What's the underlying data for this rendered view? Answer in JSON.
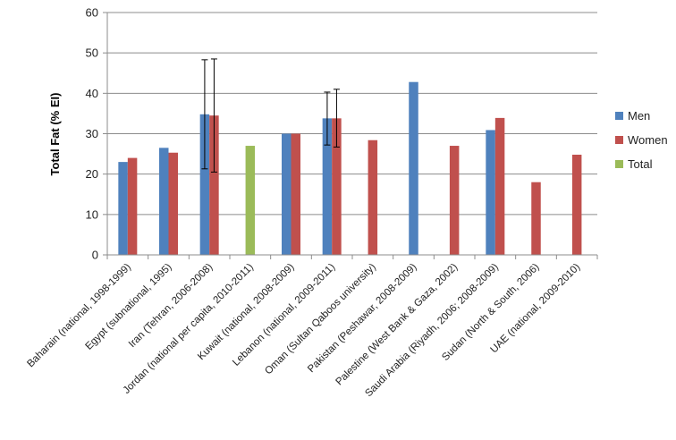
{
  "chart_data": {
    "type": "bar",
    "ylabel": "Total Fat (% EI)",
    "ylim": [
      0,
      60
    ],
    "yticks": [
      0,
      10,
      20,
      30,
      40,
      50,
      60
    ],
    "grid": true,
    "legend_position": "right",
    "categories": [
      "Baharain (national, 1998-1999)",
      "Egypt (subnational, 1995)",
      "Iran (Tehran, 2006-2008)",
      "Jordan (national per capita, 2010-2011)",
      "Kuwait (national, 2008-2009)",
      "Lebanon (national, 2009-2011)",
      "Oman (Sultan Qaboos university)",
      "Pakistan (Peshawar, 2008-2009)",
      "Palestine (West Bank & Gaza, 2002)",
      "Saudi Arabia (Riyadh, 2006; 2008-2009)",
      "Sudan (North & South, 2006)",
      "UAE (national, 2009-2010)"
    ],
    "series": [
      {
        "name": "Men",
        "color": "#4f81bd",
        "values": [
          23,
          26.5,
          34.8,
          null,
          30,
          33.8,
          null,
          42.8,
          null,
          30.9,
          null,
          null
        ],
        "error_low": [
          null,
          null,
          21.3,
          null,
          null,
          27.2,
          null,
          null,
          null,
          null,
          null,
          null
        ],
        "error_high": [
          null,
          null,
          48.3,
          null,
          null,
          40.3,
          null,
          null,
          null,
          null,
          null,
          null
        ]
      },
      {
        "name": "Women",
        "color": "#c0504d",
        "values": [
          24,
          25.3,
          34.5,
          null,
          30,
          33.8,
          28.4,
          null,
          27,
          33.9,
          18,
          24.8
        ],
        "error_low": [
          null,
          null,
          20.5,
          null,
          null,
          26.7,
          null,
          null,
          null,
          null,
          null,
          null
        ],
        "error_high": [
          null,
          null,
          48.5,
          null,
          null,
          41,
          null,
          null,
          null,
          null,
          null,
          null
        ]
      },
      {
        "name": "Total",
        "color": "#9bbb59",
        "values": [
          null,
          null,
          null,
          27,
          null,
          null,
          null,
          null,
          null,
          null,
          null,
          null
        ]
      }
    ]
  }
}
